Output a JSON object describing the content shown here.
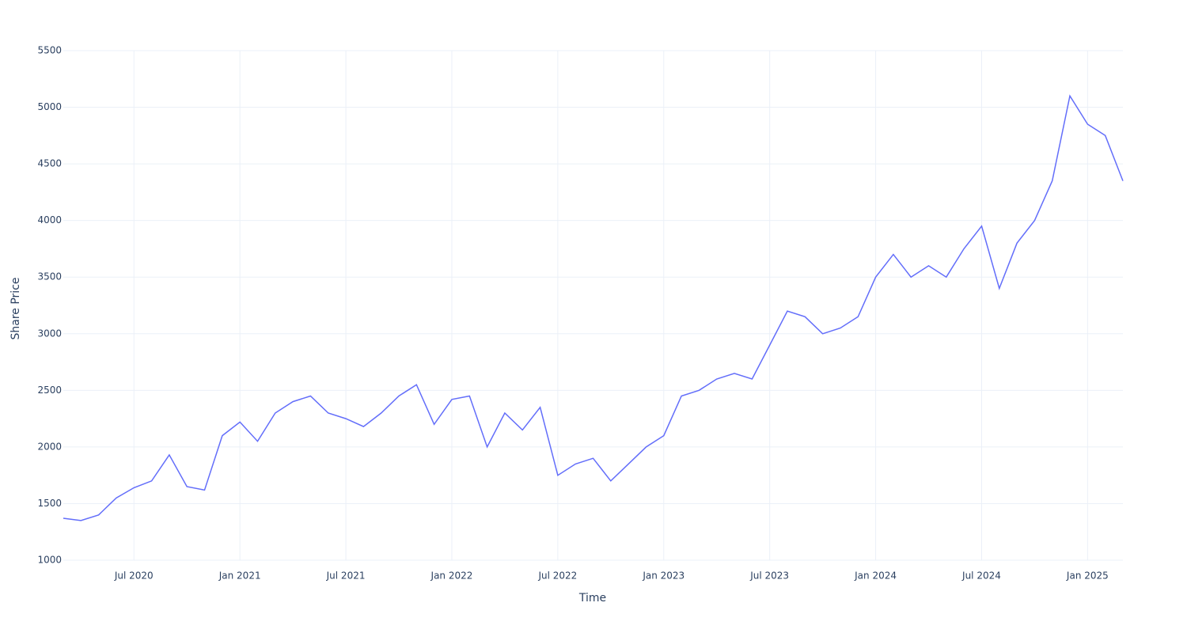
{
  "chart_data": {
    "type": "line",
    "x_label": "Time",
    "y_label": "Share Price",
    "x": [
      "2020-03",
      "2020-04",
      "2020-05",
      "2020-06",
      "2020-07",
      "2020-08",
      "2020-09",
      "2020-10",
      "2020-11",
      "2020-12",
      "2021-01",
      "2021-02",
      "2021-03",
      "2021-04",
      "2021-05",
      "2021-06",
      "2021-07",
      "2021-08",
      "2021-09",
      "2021-10",
      "2021-11",
      "2021-12",
      "2022-01",
      "2022-02",
      "2022-03",
      "2022-04",
      "2022-05",
      "2022-06",
      "2022-07",
      "2022-08",
      "2022-09",
      "2022-10",
      "2022-11",
      "2022-12",
      "2023-01",
      "2023-02",
      "2023-03",
      "2023-04",
      "2023-05",
      "2023-06",
      "2023-07",
      "2023-08",
      "2023-09",
      "2023-10",
      "2023-11",
      "2023-12",
      "2024-01",
      "2024-02",
      "2024-03",
      "2024-04",
      "2024-05",
      "2024-06",
      "2024-07",
      "2024-08",
      "2024-09",
      "2024-10",
      "2024-11",
      "2024-12",
      "2025-01",
      "2025-02",
      "2025-03"
    ],
    "series": [
      {
        "name": "Share Price",
        "color": "#636efa",
        "values": [
          1370,
          1350,
          1400,
          1550,
          1640,
          1700,
          1930,
          1650,
          1620,
          2100,
          2220,
          2050,
          2300,
          2400,
          2450,
          2300,
          2250,
          2180,
          2300,
          2450,
          2550,
          2200,
          2420,
          2450,
          2000,
          2300,
          2150,
          2350,
          1750,
          1850,
          1900,
          1700,
          1850,
          2000,
          2100,
          2450,
          2500,
          2600,
          2650,
          2600,
          2900,
          3200,
          3150,
          3000,
          3050,
          3150,
          3500,
          3700,
          3500,
          3600,
          3500,
          3750,
          3950,
          3400,
          3800,
          4000,
          4350,
          5100,
          4850,
          4750,
          4350
        ]
      }
    ],
    "xlim": [
      "2020-03",
      "2025-03"
    ],
    "xticks": [
      {
        "value": "2020-07",
        "label": "Jul 2020"
      },
      {
        "value": "2021-01",
        "label": "Jan 2021"
      },
      {
        "value": "2021-07",
        "label": "Jul 2021"
      },
      {
        "value": "2022-01",
        "label": "Jan 2022"
      },
      {
        "value": "2022-07",
        "label": "Jul 2022"
      },
      {
        "value": "2023-01",
        "label": "Jan 2023"
      },
      {
        "value": "2023-07",
        "label": "Jul 2023"
      },
      {
        "value": "2024-01",
        "label": "Jan 2024"
      },
      {
        "value": "2024-07",
        "label": "Jul 2024"
      },
      {
        "value": "2025-01",
        "label": "Jan 2025"
      }
    ],
    "ylim": [
      1000,
      5500
    ],
    "yticks": [
      1000,
      1500,
      2000,
      2500,
      3000,
      3500,
      4000,
      4500,
      5000,
      5500
    ],
    "grid": true
  }
}
